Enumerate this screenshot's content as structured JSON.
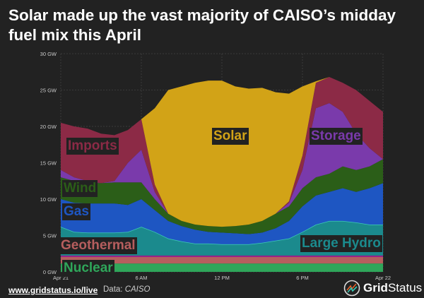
{
  "title": "Solar made up the vast majority of CAISO’s midday fuel mix this April",
  "footer": {
    "link": "www.gridstatus.io/live",
    "source_prefix": "Data: ",
    "source": "CAISO"
  },
  "logo": {
    "bold": "Grid",
    "regular": "Status"
  },
  "chart_data": {
    "type": "area",
    "stacked": true,
    "x": [
      0,
      1,
      2,
      3,
      4,
      5,
      6,
      7,
      8,
      9,
      10,
      11,
      12,
      13,
      14,
      15,
      16,
      17,
      18,
      19,
      20,
      21,
      22,
      23,
      24
    ],
    "x_unit": "hour of day, Apr 21 to Apr 22",
    "xticks": [
      {
        "value": 0,
        "label": "Apr 21"
      },
      {
        "value": 6,
        "label": "6 AM"
      },
      {
        "value": 12,
        "label": "12 PM"
      },
      {
        "value": 18,
        "label": "6 PM"
      },
      {
        "value": 24,
        "label": "Apr 22"
      }
    ],
    "yticks": [
      {
        "value": 0,
        "label": "0 GW"
      },
      {
        "value": 5,
        "label": "5 GW"
      },
      {
        "value": 10,
        "label": "10 GW"
      },
      {
        "value": 15,
        "label": "15 GW"
      },
      {
        "value": 20,
        "label": "20 GW"
      },
      {
        "value": 25,
        "label": "25 GW"
      },
      {
        "value": 30,
        "label": "30 GW"
      }
    ],
    "ylim": [
      0,
      30
    ],
    "grid": true,
    "legend": "inline labels",
    "series": [
      {
        "name": "Nuclear",
        "color": "#2fa65a",
        "values": [
          1.15,
          1.15,
          1.15,
          1.15,
          1.15,
          1.15,
          1.15,
          1.15,
          1.15,
          1.15,
          1.15,
          1.15,
          1.15,
          1.15,
          1.15,
          1.15,
          1.15,
          1.15,
          1.15,
          1.15,
          1.15,
          1.15,
          1.15,
          1.15,
          1.15
        ]
      },
      {
        "name": "Geothermal",
        "color": "#b65e5e",
        "values": [
          0.9,
          0.9,
          0.9,
          0.9,
          0.9,
          0.9,
          0.9,
          0.9,
          0.9,
          0.9,
          0.9,
          0.9,
          0.9,
          0.9,
          0.9,
          0.9,
          0.9,
          0.9,
          0.9,
          0.9,
          0.9,
          0.9,
          0.9,
          0.9,
          0.9
        ]
      },
      {
        "color": "#a0208f",
        "values": [
          0.2,
          0.2,
          0.2,
          0.2,
          0.2,
          0.2,
          0.2,
          0.2,
          0.2,
          0.2,
          0.2,
          0.2,
          0.2,
          0.2,
          0.2,
          0.2,
          0.2,
          0.2,
          0.2,
          0.2,
          0.2,
          0.2,
          0.2,
          0.2,
          0.2
        ]
      },
      {
        "name": "Large Hydro",
        "color": "#1b8a8d",
        "line": "#3ccab6",
        "values": [
          3.95,
          3.25,
          3.15,
          3.15,
          3.15,
          3.25,
          3.95,
          3.25,
          2.35,
          1.95,
          1.65,
          1.65,
          1.55,
          1.55,
          1.55,
          1.75,
          2.05,
          2.35,
          3.25,
          4.25,
          4.75,
          4.75,
          4.55,
          4.25,
          4.25
        ]
      },
      {
        "name": "Gas",
        "color": "#1e56c2",
        "values": [
          3.8,
          4.0,
          4.0,
          4.0,
          4.0,
          3.7,
          3.8,
          3.0,
          2.4,
          2.1,
          1.9,
          1.6,
          1.6,
          1.5,
          1.4,
          1.4,
          1.7,
          2.4,
          3.5,
          4.0,
          4.0,
          4.5,
          4.2,
          5.0,
          5.7
        ]
      },
      {
        "name": "Wind",
        "color": "#2b5e18",
        "values": [
          3.0,
          3.0,
          2.9,
          2.8,
          2.9,
          3.1,
          2.3,
          1.5,
          1.0,
          0.7,
          0.7,
          0.8,
          0.8,
          1.0,
          1.3,
          1.6,
          2.0,
          2.0,
          2.5,
          2.5,
          2.5,
          3.0,
          3.0,
          3.0,
          3.3
        ]
      },
      {
        "name": "Storage",
        "color": "#7a3aab",
        "values": [
          1.0,
          0.5,
          0.2,
          0,
          0.2,
          2.7,
          4.5,
          1.0,
          0,
          0,
          0,
          0,
          0,
          0,
          0,
          0,
          0,
          0.5,
          2.5,
          9.5,
          9.7,
          7.5,
          5.0,
          2.5,
          0
        ]
      },
      {
        "name": "Imports",
        "color": "#8c2a46",
        "values": [
          6.5,
          7.0,
          7.2,
          6.8,
          6.3,
          4.5,
          4.2,
          1.0,
          0,
          0,
          0,
          0,
          0,
          0,
          0,
          0,
          0,
          0.2,
          2.0,
          3.5,
          3.6,
          4.0,
          6.0,
          6.5,
          6.5
        ]
      },
      {
        "name": "Solar",
        "color": "#d2a317",
        "values": [
          0,
          0,
          0,
          0,
          0,
          0,
          0,
          10.5,
          17,
          18.5,
          19.5,
          20,
          20.1,
          19.2,
          18.7,
          18.3,
          16.7,
          14.8,
          9.5,
          0.2,
          0,
          0,
          0,
          0,
          0
        ]
      }
    ]
  }
}
